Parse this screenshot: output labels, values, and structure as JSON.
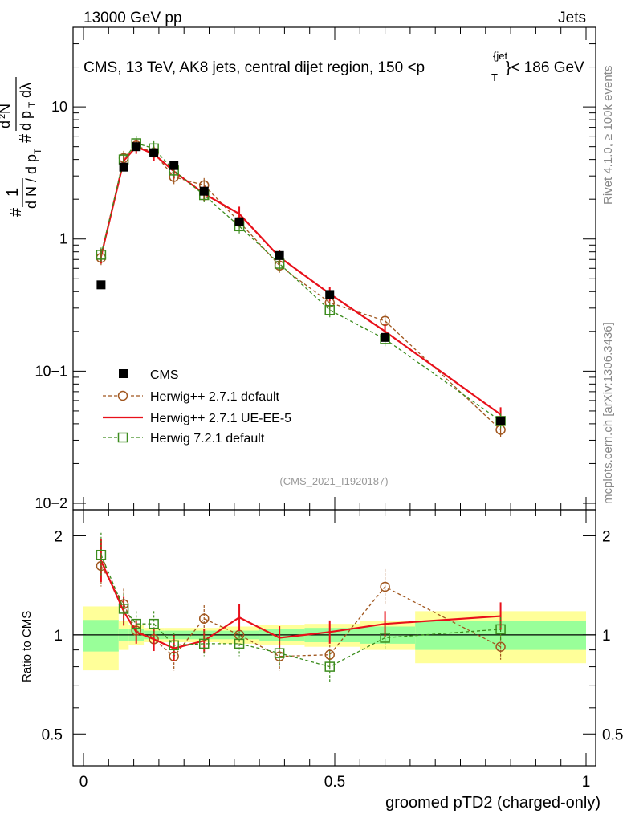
{
  "header": {
    "left": "13000 GeV pp",
    "right": "Jets",
    "plot_title": "CMS, 13 TeV, AK8 jets, central dijet region, 150 <p",
    "plot_title_sup": "{jet",
    "plot_title_sub": "T",
    "plot_title_end": "}< 186 GeV"
  },
  "side_labels": {
    "rivet": "Rivet 4.1.0, ≥ 100k events",
    "mcplots": "mcplots.cern.ch [arXiv:1306.3436]"
  },
  "analysis_tag": "(CMS_2021_I1920187)",
  "y_label_main": "1/N dN/dpT d2N/dpT dlambda",
  "chart_data": [
    {
      "type": "scatter",
      "title": "CMS, 13 TeV, AK8 jets, central dijet region, 150 < pT jet < 186 GeV",
      "xlabel": "groomed pTD2 (charged-only)",
      "ylabel": "1/N dN/dpT # d2N / dpT dlambda",
      "xlim": [
        0,
        1
      ],
      "ylim": [
        0.01,
        40
      ],
      "yscale": "log",
      "y_tick_labels": [
        "10−2",
        "10−1",
        "1",
        "10"
      ],
      "x_tick_labels": [
        "0",
        "0.5",
        "1"
      ],
      "x": [
        0.035,
        0.08,
        0.105,
        0.14,
        0.18,
        0.24,
        0.31,
        0.39,
        0.49,
        0.6,
        0.83
      ],
      "series": [
        {
          "name": "CMS",
          "values": [
            0.45,
            3.5,
            5.0,
            4.5,
            3.6,
            2.3,
            1.35,
            0.75,
            0.38,
            0.18,
            0.042
          ],
          "style": "marker"
        },
        {
          "name": "Herwig++ 2.7.1 default",
          "values": [
            0.72,
            4.1,
            5.1,
            4.5,
            2.95,
            2.55,
            1.35,
            0.63,
            0.33,
            0.24,
            0.036
          ],
          "style": "dashed-circle",
          "color": "#a0561e"
        },
        {
          "name": "Herwig++ 2.7.1 UE-EE-5",
          "values": [
            0.74,
            3.9,
            5.0,
            4.4,
            3.25,
            2.2,
            1.55,
            0.73,
            0.385,
            0.2,
            0.047
          ],
          "style": "solid",
          "color": "#e8101a"
        },
        {
          "name": "Herwig 7.2.1 default",
          "values": [
            0.76,
            4.0,
            5.3,
            4.85,
            3.3,
            2.15,
            1.25,
            0.65,
            0.29,
            0.175,
            0.042
          ],
          "style": "dashed-square",
          "color": "#3c8c1e"
        }
      ]
    },
    {
      "type": "line",
      "title": "Ratio to CMS",
      "xlabel": "groomed pTD2 (charged-only)",
      "ylabel": "Ratio to CMS",
      "xlim": [
        0,
        1
      ],
      "ylim": [
        0.4,
        2.4
      ],
      "yscale": "log",
      "y_ticks": [
        0.5,
        1,
        2
      ],
      "y_tick_labels": [
        "0.5",
        "1",
        "2"
      ],
      "x_tick_labels": [
        "0",
        "0.5",
        "1"
      ],
      "x": [
        0.035,
        0.08,
        0.105,
        0.14,
        0.18,
        0.24,
        0.31,
        0.39,
        0.49,
        0.6,
        0.83
      ],
      "bin_edges": [
        0,
        0.07,
        0.09,
        0.12,
        0.16,
        0.21,
        0.27,
        0.35,
        0.44,
        0.55,
        0.66,
        1.0
      ],
      "bands": {
        "green_half_width": [
          0.11,
          0.04,
          0.04,
          0.03,
          0.03,
          0.03,
          0.03,
          0.04,
          0.05,
          0.06,
          0.1
        ],
        "yellow_half_width": [
          0.22,
          0.1,
          0.07,
          0.05,
          0.05,
          0.05,
          0.06,
          0.07,
          0.08,
          0.1,
          0.18
        ]
      },
      "series": [
        {
          "name": "Herwig++ 2.7.1 default",
          "values": [
            1.62,
            1.24,
            1.03,
            0.97,
            0.86,
            1.12,
            1.0,
            0.86,
            0.87,
            1.4,
            0.92
          ],
          "color": "#a0561e"
        },
        {
          "name": "Herwig++ 2.7.1 UE-EE-5",
          "values": [
            1.68,
            1.18,
            1.02,
            0.97,
            0.91,
            0.96,
            1.13,
            0.98,
            1.02,
            1.08,
            1.14
          ],
          "color": "#e8101a"
        },
        {
          "name": "Herwig 7.2.1 default",
          "values": [
            1.75,
            1.2,
            1.08,
            1.08,
            0.93,
            0.94,
            0.94,
            0.88,
            0.8,
            0.98,
            1.04
          ],
          "color": "#3c8c1e"
        }
      ]
    }
  ],
  "legend": [
    {
      "label": "CMS"
    },
    {
      "label": "Herwig++ 2.7.1 default"
    },
    {
      "label": "Herwig++ 2.7.1 UE-EE-5"
    },
    {
      "label": "Herwig 7.2.1 default"
    }
  ],
  "ratio_ylabel": "Ratio to CMS",
  "xlabel": "groomed pTD2 (charged-only)"
}
